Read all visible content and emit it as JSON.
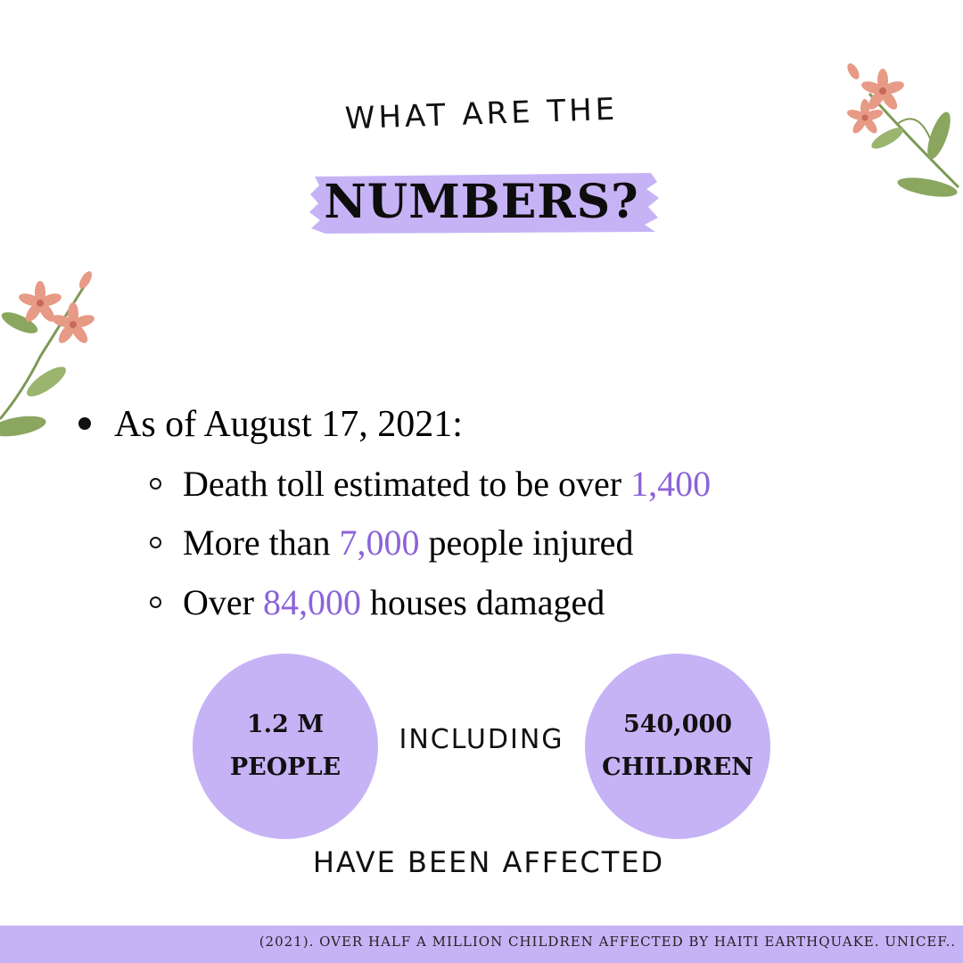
{
  "header": {
    "kicker": "WHAT ARE THE",
    "title": "NUMBERS?"
  },
  "list": {
    "main": "As of August 17, 2021:",
    "items": [
      {
        "before": "Death toll estimated to be over ",
        "highlight": "1,400",
        "after": ""
      },
      {
        "before": "More than ",
        "highlight": "7,000",
        "after": " people injured"
      },
      {
        "before": "Over ",
        "highlight": "84,000",
        "after": " houses damaged"
      }
    ]
  },
  "stats": {
    "left": {
      "line1": "1.2 M",
      "line2": "PEOPLE"
    },
    "connector": "INCLUDING",
    "right": {
      "line1": "540,000",
      "line2": "CHILDREN"
    },
    "footer": "HAVE BEEN AFFECTED"
  },
  "citation": "(2021). OVER HALF A MILLION CHILDREN AFFECTED BY HAITI EARTHQUAKE. UNICEF..",
  "colors": {
    "accent": "#c6b3f6",
    "highlight_text": "#8c63d9",
    "flower": "#e79a86",
    "leaf": "#7d9a55"
  },
  "icons": [
    "flower-branch-top-right",
    "flower-branch-left"
  ]
}
